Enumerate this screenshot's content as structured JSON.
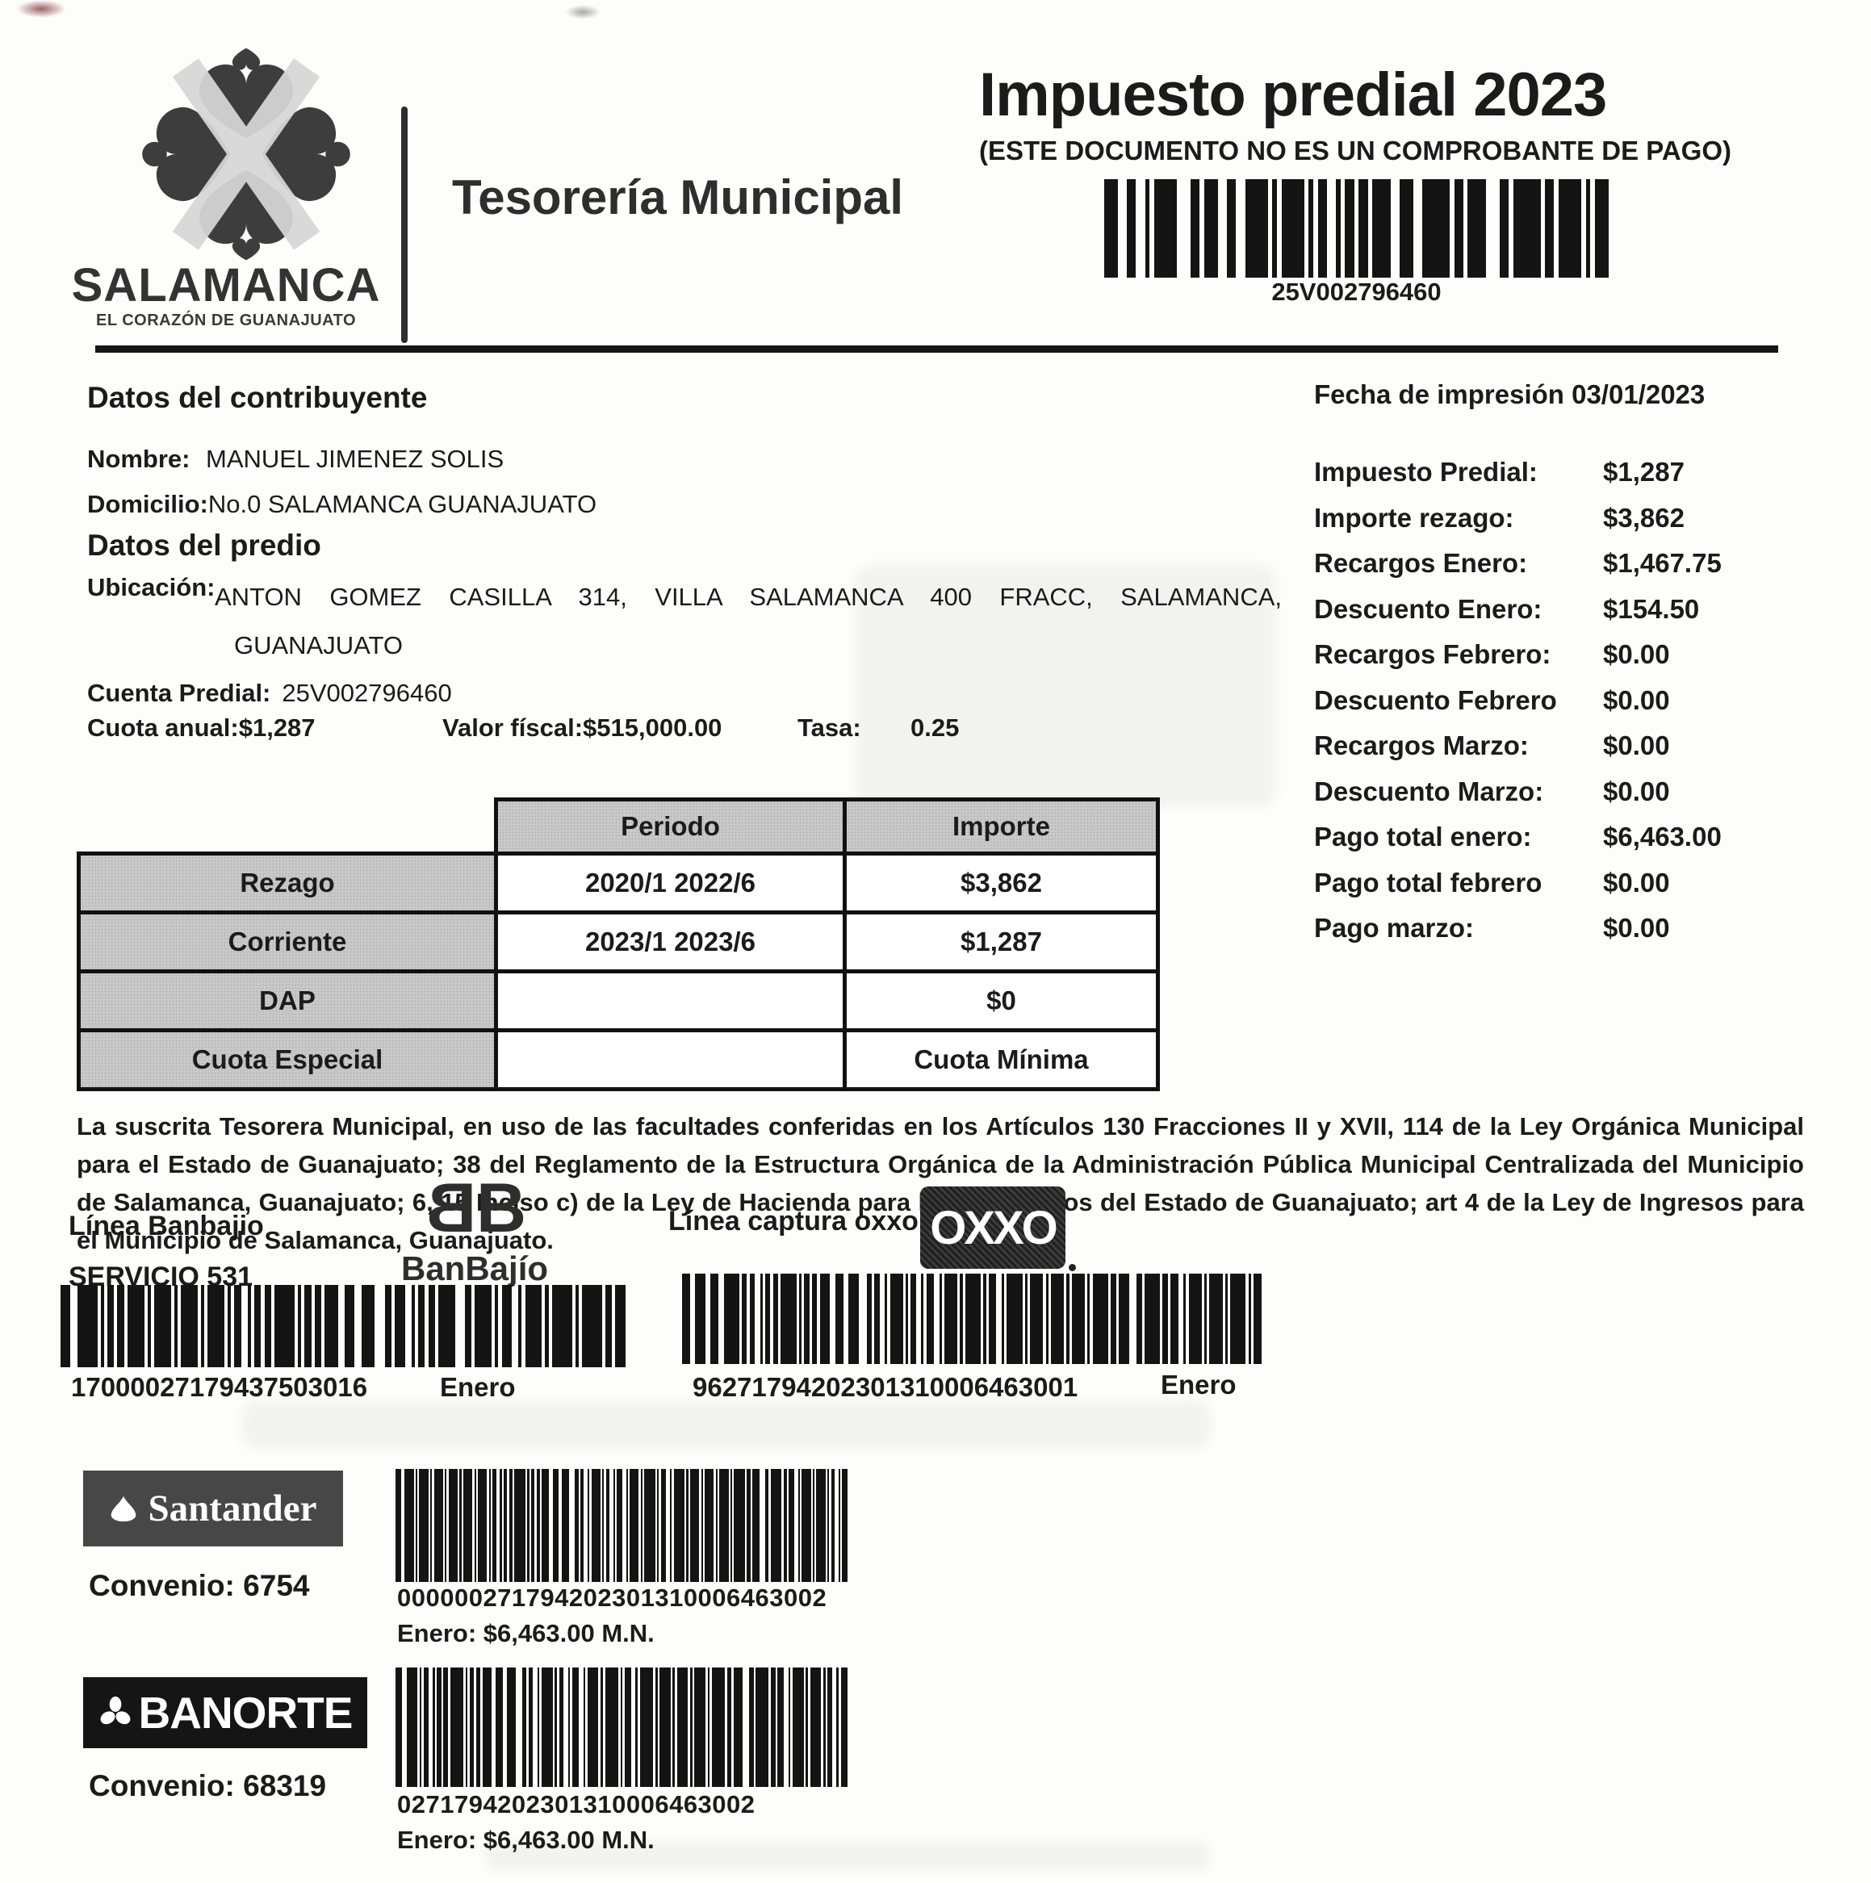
{
  "header": {
    "logo_name": "SALAMANCA",
    "logo_tagline": "EL CORAZÓN DE GUANAJUATO",
    "department": "Tesorería Municipal",
    "title": "Impuesto predial 2023",
    "subtitle": "(ESTE DOCUMENTO NO ES UN COMPROBANTE DE PAGO)",
    "account_barcode": "25V002796460"
  },
  "fecha_impresion": "Fecha de impresión 03/01/2023",
  "contribuyente": {
    "title": "Datos del contribuyente",
    "nombre_label": "Nombre:",
    "nombre": "MANUEL JIMENEZ SOLIS",
    "domicilio_label": "Domicilio:",
    "domicilio": "No.0 SALAMANCA GUANAJUATO"
  },
  "predio": {
    "title": "Datos del predio",
    "ubicacion_label": "Ubicación:",
    "ubicacion_line1": "ANTON GOMEZ CASILLA 314, VILLA SALAMANCA 400 FRACC, SALAMANCA,",
    "ubicacion_line2": "GUANAJUATO",
    "cuenta_label": "Cuenta Predial:",
    "cuenta_value": "25V002796460",
    "cuota_anual": "Cuota anual:$1,287",
    "valor_fiscal": "Valor físcal:$515,000.00",
    "tasa_label": "Tasa:",
    "tasa_value": "0.25"
  },
  "resumen": {
    "rows": [
      {
        "label": "Impuesto Predial:",
        "value": "$1,287"
      },
      {
        "label": "Importe rezago:",
        "value": "$3,862"
      },
      {
        "label": "Recargos Enero:",
        "value": "$1,467.75"
      },
      {
        "label": "Descuento Enero:",
        "value": "$154.50"
      },
      {
        "label": "Recargos Febrero:",
        "value": "$0.00"
      },
      {
        "label": "Descuento Febrero",
        "value": "$0.00"
      },
      {
        "label": "Recargos Marzo:",
        "value": "$0.00"
      },
      {
        "label": "Descuento Marzo:",
        "value": "$0.00"
      },
      {
        "label": "Pago total enero:",
        "value": "$6,463.00"
      },
      {
        "label": "Pago total febrero",
        "value": "$0.00"
      },
      {
        "label": "Pago marzo:",
        "value": "$0.00"
      }
    ]
  },
  "tabla_periodos": {
    "col_headers": [
      "Periodo",
      "Importe"
    ],
    "rows": [
      {
        "concepto": "Rezago",
        "periodo": "2020/1 2022/6",
        "importe": "$3,862"
      },
      {
        "concepto": "Corriente",
        "periodo": "2023/1 2023/6",
        "importe": "$1,287"
      },
      {
        "concepto": "DAP",
        "periodo": "",
        "importe": "$0"
      },
      {
        "concepto": "Cuota Especial",
        "periodo": "",
        "importe": "Cuota Mínima"
      }
    ]
  },
  "texto_legal": "La suscrita Tesorera Municipal, en uso de las facultades conferidas en los Artículos 130 Fracciones II y XVII, 114 de la Ley Orgánica Municipal para el Estado de Guanajuato; 38 del Reglamento de la Estructura Orgánica de la Administración Pública Municipal Centralizada del Municipio de Salamanca, Guanajuato; 6, 15 Inciso c) de la Ley de Hacienda para los Municipios del Estado de Guanajuato; art 4 de la Ley de Ingresos para el Municipio de Salamanca, Guanajuato.",
  "pagos": {
    "banbajio": {
      "linea_label": "Línea Banbajio",
      "servicio": "SERVICIO 531",
      "monogram_left": "B",
      "monogram_right": "B",
      "logo_text": "BanBajío",
      "codigo": "17000027179437503016",
      "mes": "Enero"
    },
    "oxxo": {
      "linea_label": "Línea captura oxxo",
      "logo_text": "OXXO",
      "codigo": "96271794202301310006463001",
      "mes": "Enero"
    },
    "santander": {
      "logo_text": "Santander",
      "convenio": "Convenio: 6754",
      "codigo": "000000271794202301310006463002",
      "importe": "Enero: $6,463.00 M.N."
    },
    "banorte": {
      "logo_text": "BANORTE",
      "convenio": "Convenio: 68319",
      "codigo": "0271794202301310006463002",
      "importe": "Enero: $6,463.00 M.N."
    }
  },
  "colors": {
    "ink": "#1b1b1b",
    "table_gray": "#c9c9c9",
    "santander_bg": "#474747",
    "banorte_bg": "#151515"
  }
}
